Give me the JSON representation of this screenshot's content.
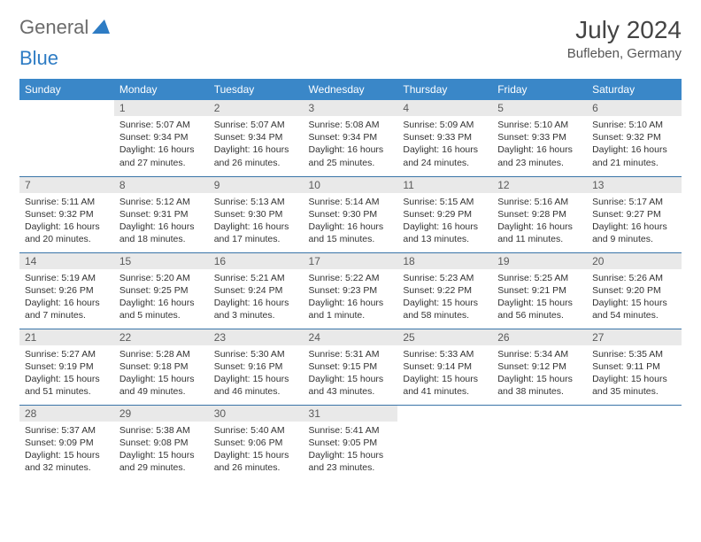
{
  "logo": {
    "text1": "General",
    "text2": "Blue"
  },
  "title": "July 2024",
  "location": "Bufleben, Germany",
  "colors": {
    "header_bg": "#3a87c8",
    "header_fg": "#ffffff",
    "daynum_bg": "#e9e9e9",
    "row_border": "#3a75a8",
    "logo_gray": "#6b6b6b",
    "logo_blue": "#2e7cc4"
  },
  "weekdays": [
    "Sunday",
    "Monday",
    "Tuesday",
    "Wednesday",
    "Thursday",
    "Friday",
    "Saturday"
  ],
  "weeks": [
    [
      {
        "n": "",
        "empty": true
      },
      {
        "n": "1",
        "sunrise": "5:07 AM",
        "sunset": "9:34 PM",
        "daylight": "16 hours and 27 minutes."
      },
      {
        "n": "2",
        "sunrise": "5:07 AM",
        "sunset": "9:34 PM",
        "daylight": "16 hours and 26 minutes."
      },
      {
        "n": "3",
        "sunrise": "5:08 AM",
        "sunset": "9:34 PM",
        "daylight": "16 hours and 25 minutes."
      },
      {
        "n": "4",
        "sunrise": "5:09 AM",
        "sunset": "9:33 PM",
        "daylight": "16 hours and 24 minutes."
      },
      {
        "n": "5",
        "sunrise": "5:10 AM",
        "sunset": "9:33 PM",
        "daylight": "16 hours and 23 minutes."
      },
      {
        "n": "6",
        "sunrise": "5:10 AM",
        "sunset": "9:32 PM",
        "daylight": "16 hours and 21 minutes."
      }
    ],
    [
      {
        "n": "7",
        "sunrise": "5:11 AM",
        "sunset": "9:32 PM",
        "daylight": "16 hours and 20 minutes."
      },
      {
        "n": "8",
        "sunrise": "5:12 AM",
        "sunset": "9:31 PM",
        "daylight": "16 hours and 18 minutes."
      },
      {
        "n": "9",
        "sunrise": "5:13 AM",
        "sunset": "9:30 PM",
        "daylight": "16 hours and 17 minutes."
      },
      {
        "n": "10",
        "sunrise": "5:14 AM",
        "sunset": "9:30 PM",
        "daylight": "16 hours and 15 minutes."
      },
      {
        "n": "11",
        "sunrise": "5:15 AM",
        "sunset": "9:29 PM",
        "daylight": "16 hours and 13 minutes."
      },
      {
        "n": "12",
        "sunrise": "5:16 AM",
        "sunset": "9:28 PM",
        "daylight": "16 hours and 11 minutes."
      },
      {
        "n": "13",
        "sunrise": "5:17 AM",
        "sunset": "9:27 PM",
        "daylight": "16 hours and 9 minutes."
      }
    ],
    [
      {
        "n": "14",
        "sunrise": "5:19 AM",
        "sunset": "9:26 PM",
        "daylight": "16 hours and 7 minutes."
      },
      {
        "n": "15",
        "sunrise": "5:20 AM",
        "sunset": "9:25 PM",
        "daylight": "16 hours and 5 minutes."
      },
      {
        "n": "16",
        "sunrise": "5:21 AM",
        "sunset": "9:24 PM",
        "daylight": "16 hours and 3 minutes."
      },
      {
        "n": "17",
        "sunrise": "5:22 AM",
        "sunset": "9:23 PM",
        "daylight": "16 hours and 1 minute."
      },
      {
        "n": "18",
        "sunrise": "5:23 AM",
        "sunset": "9:22 PM",
        "daylight": "15 hours and 58 minutes."
      },
      {
        "n": "19",
        "sunrise": "5:25 AM",
        "sunset": "9:21 PM",
        "daylight": "15 hours and 56 minutes."
      },
      {
        "n": "20",
        "sunrise": "5:26 AM",
        "sunset": "9:20 PM",
        "daylight": "15 hours and 54 minutes."
      }
    ],
    [
      {
        "n": "21",
        "sunrise": "5:27 AM",
        "sunset": "9:19 PM",
        "daylight": "15 hours and 51 minutes."
      },
      {
        "n": "22",
        "sunrise": "5:28 AM",
        "sunset": "9:18 PM",
        "daylight": "15 hours and 49 minutes."
      },
      {
        "n": "23",
        "sunrise": "5:30 AM",
        "sunset": "9:16 PM",
        "daylight": "15 hours and 46 minutes."
      },
      {
        "n": "24",
        "sunrise": "5:31 AM",
        "sunset": "9:15 PM",
        "daylight": "15 hours and 43 minutes."
      },
      {
        "n": "25",
        "sunrise": "5:33 AM",
        "sunset": "9:14 PM",
        "daylight": "15 hours and 41 minutes."
      },
      {
        "n": "26",
        "sunrise": "5:34 AM",
        "sunset": "9:12 PM",
        "daylight": "15 hours and 38 minutes."
      },
      {
        "n": "27",
        "sunrise": "5:35 AM",
        "sunset": "9:11 PM",
        "daylight": "15 hours and 35 minutes."
      }
    ],
    [
      {
        "n": "28",
        "sunrise": "5:37 AM",
        "sunset": "9:09 PM",
        "daylight": "15 hours and 32 minutes."
      },
      {
        "n": "29",
        "sunrise": "5:38 AM",
        "sunset": "9:08 PM",
        "daylight": "15 hours and 29 minutes."
      },
      {
        "n": "30",
        "sunrise": "5:40 AM",
        "sunset": "9:06 PM",
        "daylight": "15 hours and 26 minutes."
      },
      {
        "n": "31",
        "sunrise": "5:41 AM",
        "sunset": "9:05 PM",
        "daylight": "15 hours and 23 minutes."
      },
      {
        "n": "",
        "empty": true
      },
      {
        "n": "",
        "empty": true
      },
      {
        "n": "",
        "empty": true
      }
    ]
  ],
  "labels": {
    "sunrise": "Sunrise:",
    "sunset": "Sunset:",
    "daylight": "Daylight:"
  }
}
